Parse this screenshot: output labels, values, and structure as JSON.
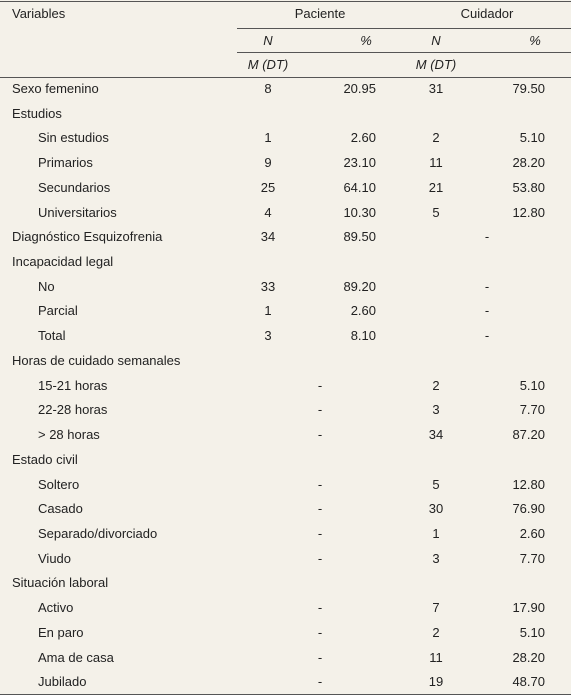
{
  "header": {
    "variables": "Variables",
    "paciente": "Paciente",
    "cuidador": "Cuidador",
    "subheaders": [
      "N",
      "%",
      "N",
      "%"
    ],
    "stats": [
      "M (DT)",
      "M (DT)"
    ]
  },
  "rows": [
    {
      "label": "Sexo femenino",
      "paciente": [
        "8",
        "20.95"
      ],
      "cuidador": [
        "31",
        "79.50"
      ]
    },
    {
      "label": "Estudios",
      "items": [
        {
          "label": "Sin estudios",
          "paciente": [
            "1",
            "2.60"
          ],
          "cuidador": [
            "2",
            "5.10"
          ]
        },
        {
          "label": "Primarios",
          "paciente": [
            "9",
            "23.10"
          ],
          "cuidador": [
            "11",
            "28.20"
          ]
        },
        {
          "label": "Secundarios",
          "paciente": [
            "25",
            "64.10"
          ],
          "cuidador": [
            "21",
            "53.80"
          ]
        },
        {
          "label": "Universitarios",
          "paciente": [
            "4",
            "10.30"
          ],
          "cuidador": [
            "5",
            "12.80"
          ]
        }
      ]
    },
    {
      "label": "Diagnóstico Esquizofrenia",
      "paciente": [
        "34",
        "89.50"
      ],
      "cuidador": "-"
    },
    {
      "label": "Incapacidad legal",
      "items": [
        {
          "label": "No",
          "paciente": [
            "33",
            "89.20"
          ],
          "cuidador": "-"
        },
        {
          "label": "Parcial",
          "paciente": [
            "1",
            "2.60"
          ],
          "cuidador": "-"
        },
        {
          "label": "Total",
          "paciente": [
            "3",
            "8.10"
          ],
          "cuidador": "-"
        }
      ]
    },
    {
      "label": "Horas de cuidado semanales",
      "items": [
        {
          "label": "15-21 horas",
          "paciente": "-",
          "cuidador": [
            "2",
            "5.10"
          ]
        },
        {
          "label": "22-28 horas",
          "paciente": "-",
          "cuidador": [
            "3",
            "7.70"
          ]
        },
        {
          "label": "> 28 horas",
          "paciente": "-",
          "cuidador": [
            "34",
            "87.20"
          ]
        }
      ]
    },
    {
      "label": "Estado civil",
      "items": [
        {
          "label": "Soltero",
          "paciente": "-",
          "cuidador": [
            "5",
            "12.80"
          ]
        },
        {
          "label": "Casado",
          "paciente": "-",
          "cuidador": [
            "30",
            "76.90"
          ]
        },
        {
          "label": "Separado/divorciado",
          "paciente": "-",
          "cuidador": [
            "1",
            "2.60"
          ]
        },
        {
          "label": "Viudo",
          "paciente": "-",
          "cuidador": [
            "3",
            "7.70"
          ]
        }
      ]
    },
    {
      "label": "Situación laboral",
      "items": [
        {
          "label": "Activo",
          "paciente": "-",
          "cuidador": [
            "7",
            "17.90"
          ]
        },
        {
          "label": "En paro",
          "paciente": "-",
          "cuidador": [
            "2",
            "5.10"
          ]
        },
        {
          "label": "Ama de casa",
          "paciente": "-",
          "cuidador": [
            "11",
            "28.20"
          ]
        },
        {
          "label": "Jubilado",
          "paciente": "-",
          "cuidador": [
            "19",
            "48.70"
          ]
        }
      ]
    }
  ]
}
